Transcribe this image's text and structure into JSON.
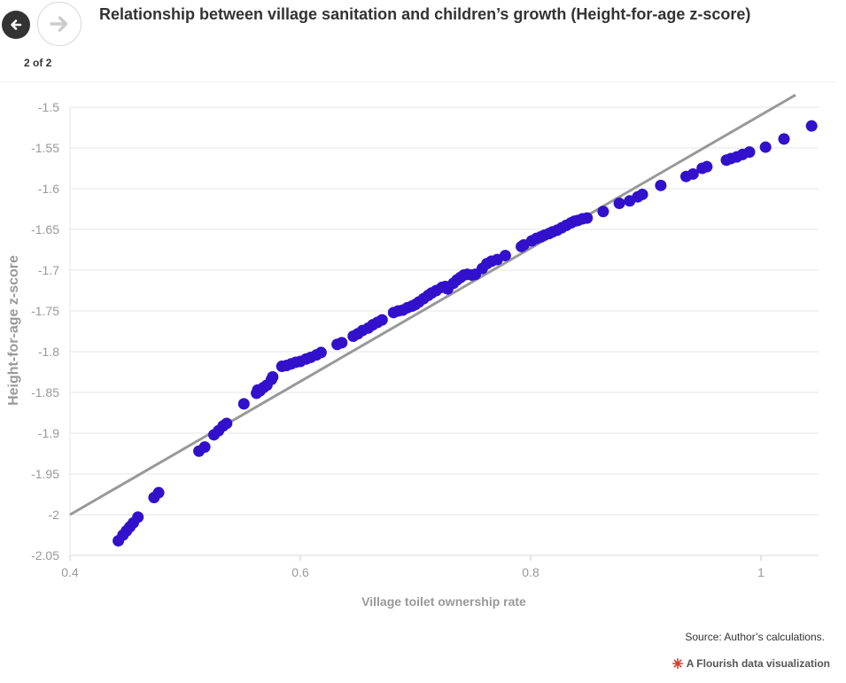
{
  "nav": {
    "page_counter": "2 of 2"
  },
  "title": "Relationship between village sanitation and children’s growth (Height-for-age z-score)",
  "source": "Source: Author’s calculations.",
  "credit": "A Flourish data visualization",
  "colors": {
    "points": "#3210cc",
    "trend": "#999999",
    "grid": "#e6e6e6",
    "axis_text": "#999999"
  },
  "chart_data": {
    "type": "scatter",
    "title": "Relationship between village sanitation and children’s growth (Height-for-age z-score)",
    "xlabel": "Village toilet ownership rate",
    "ylabel": "Height-for-age z-score",
    "xlim": [
      0.4,
      1.05
    ],
    "ylim": [
      -2.05,
      -1.5
    ],
    "x_ticks": [
      0.4,
      0.6,
      0.8,
      1
    ],
    "x_tick_labels": [
      "0.4",
      "0.6",
      "0.8",
      "1"
    ],
    "y_ticks": [
      -2.05,
      -2,
      -1.95,
      -1.9,
      -1.85,
      -1.8,
      -1.75,
      -1.7,
      -1.65,
      -1.6,
      -1.55,
      -1.5
    ],
    "y_tick_labels": [
      "-2.05",
      "-2",
      "-1.95",
      "-1.9",
      "-1.85",
      "-1.8",
      "-1.75",
      "-1.7",
      "-1.65",
      "-1.6",
      "-1.55",
      "-1.5"
    ],
    "grid": true,
    "trend_line": {
      "x": [
        0.4,
        1.03
      ],
      "y": [
        -2.0,
        -1.485
      ]
    },
    "points": [
      [
        0.442,
        -2.032
      ],
      [
        0.446,
        -2.025
      ],
      [
        0.449,
        -2.02
      ],
      [
        0.452,
        -2.015
      ],
      [
        0.455,
        -2.01
      ],
      [
        0.459,
        -2.003
      ],
      [
        0.473,
        -1.979
      ],
      [
        0.477,
        -1.973
      ],
      [
        0.512,
        -1.922
      ],
      [
        0.517,
        -1.917
      ],
      [
        0.525,
        -1.902
      ],
      [
        0.529,
        -1.897
      ],
      [
        0.533,
        -1.891
      ],
      [
        0.536,
        -1.888
      ],
      [
        0.551,
        -1.864
      ],
      [
        0.562,
        -1.851
      ],
      [
        0.563,
        -1.847
      ],
      [
        0.565,
        -1.848
      ],
      [
        0.568,
        -1.844
      ],
      [
        0.571,
        -1.841
      ],
      [
        0.575,
        -1.834
      ],
      [
        0.576,
        -1.831
      ],
      [
        0.584,
        -1.818
      ],
      [
        0.588,
        -1.817
      ],
      [
        0.592,
        -1.815
      ],
      [
        0.596,
        -1.813
      ],
      [
        0.6,
        -1.812
      ],
      [
        0.605,
        -1.809
      ],
      [
        0.609,
        -1.807
      ],
      [
        0.614,
        -1.804
      ],
      [
        0.618,
        -1.801
      ],
      [
        0.632,
        -1.791
      ],
      [
        0.636,
        -1.789
      ],
      [
        0.646,
        -1.781
      ],
      [
        0.65,
        -1.778
      ],
      [
        0.654,
        -1.774
      ],
      [
        0.659,
        -1.771
      ],
      [
        0.663,
        -1.767
      ],
      [
        0.667,
        -1.764
      ],
      [
        0.671,
        -1.761
      ],
      [
        0.681,
        -1.752
      ],
      [
        0.685,
        -1.75
      ],
      [
        0.689,
        -1.749
      ],
      [
        0.693,
        -1.746
      ],
      [
        0.697,
        -1.744
      ],
      [
        0.7,
        -1.742
      ],
      [
        0.703,
        -1.739
      ],
      [
        0.707,
        -1.735
      ],
      [
        0.711,
        -1.731
      ],
      [
        0.714,
        -1.728
      ],
      [
        0.718,
        -1.725
      ],
      [
        0.723,
        -1.721
      ],
      [
        0.726,
        -1.72
      ],
      [
        0.728,
        -1.723
      ],
      [
        0.733,
        -1.716
      ],
      [
        0.736,
        -1.712
      ],
      [
        0.739,
        -1.709
      ],
      [
        0.742,
        -1.706
      ],
      [
        0.745,
        -1.705
      ],
      [
        0.749,
        -1.706
      ],
      [
        0.752,
        -1.705
      ],
      [
        0.758,
        -1.698
      ],
      [
        0.762,
        -1.692
      ],
      [
        0.766,
        -1.689
      ],
      [
        0.771,
        -1.687
      ],
      [
        0.778,
        -1.682
      ],
      [
        0.792,
        -1.671
      ],
      [
        0.794,
        -1.669
      ],
      [
        0.801,
        -1.664
      ],
      [
        0.805,
        -1.661
      ],
      [
        0.809,
        -1.659
      ],
      [
        0.812,
        -1.657
      ],
      [
        0.816,
        -1.655
      ],
      [
        0.819,
        -1.653
      ],
      [
        0.823,
        -1.651
      ],
      [
        0.827,
        -1.648
      ],
      [
        0.831,
        -1.645
      ],
      [
        0.835,
        -1.642
      ],
      [
        0.838,
        -1.64
      ],
      [
        0.841,
        -1.639
      ],
      [
        0.845,
        -1.637
      ],
      [
        0.849,
        -1.636
      ],
      [
        0.863,
        -1.628
      ],
      [
        0.877,
        -1.618
      ],
      [
        0.886,
        -1.615
      ],
      [
        0.893,
        -1.61
      ],
      [
        0.897,
        -1.607
      ],
      [
        0.913,
        -1.596
      ],
      [
        0.935,
        -1.585
      ],
      [
        0.941,
        -1.582
      ],
      [
        0.949,
        -1.575
      ],
      [
        0.953,
        -1.573
      ],
      [
        0.97,
        -1.565
      ],
      [
        0.974,
        -1.563
      ],
      [
        0.979,
        -1.561
      ],
      [
        0.984,
        -1.558
      ],
      [
        0.99,
        -1.555
      ],
      [
        1.004,
        -1.549
      ],
      [
        1.02,
        -1.539
      ],
      [
        1.044,
        -1.523
      ]
    ]
  }
}
